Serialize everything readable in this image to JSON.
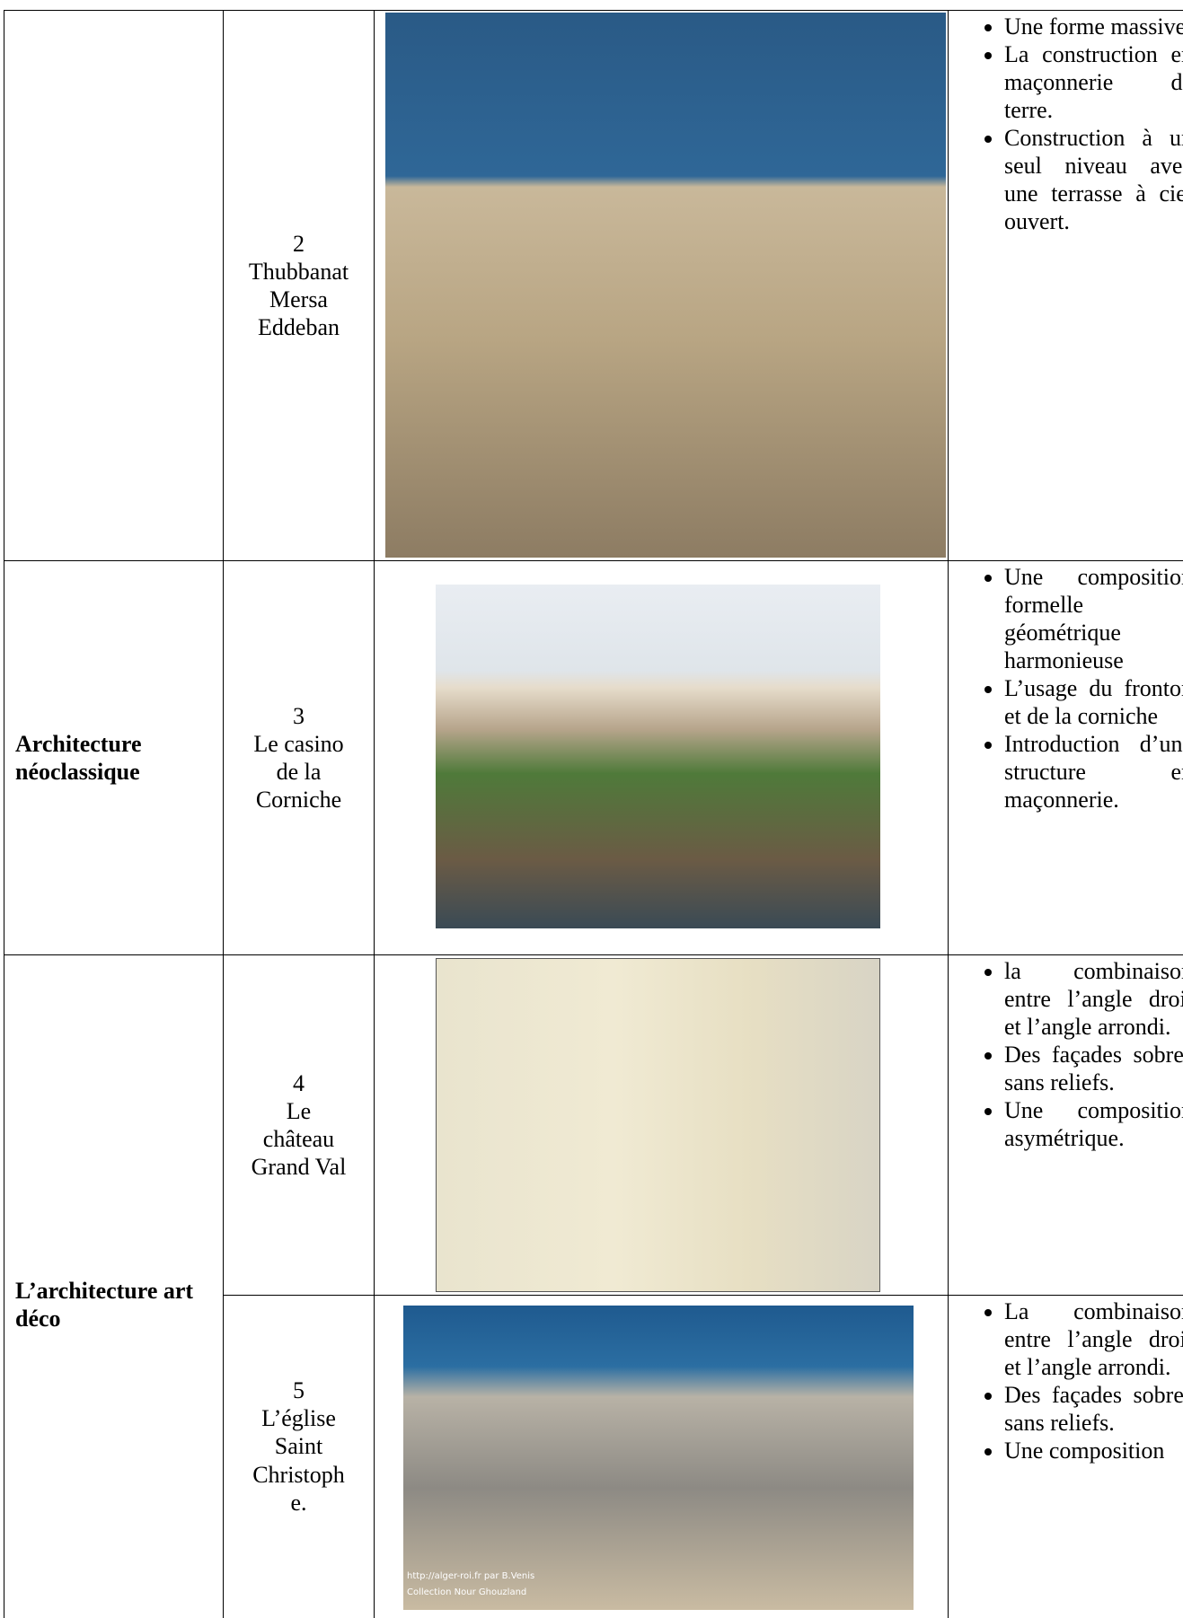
{
  "table": {
    "rows": [
      {
        "category": null,
        "number": "2",
        "name_lines": [
          "Thubbanat",
          "Mersa",
          "Eddeban"
        ],
        "bullets": [
          "Une forme massive.",
          "La construction en maçonnerie de terre.",
          "Construction à un seul niveau avec une terrasse à ciel ouvert."
        ]
      },
      {
        "category": "Architecture néoclassique",
        "number": "3",
        "name_lines": [
          "Le casino",
          "de la",
          "Corniche"
        ],
        "bullets": [
          "Une composition formelle géométrique harmonieuse",
          "L’usage du fronton et de la corniche",
          "Introduction d’une structure en maçonnerie."
        ]
      },
      {
        "category": "L’architecture art déco",
        "number": "4",
        "name_lines": [
          "Le",
          "château",
          "Grand Val"
        ],
        "bullets": [
          "la combinaison entre l’angle droit et l’angle arrondi.",
          "Des façades sobres sans reliefs.",
          "Une composition asymétrique."
        ]
      },
      {
        "category": null,
        "number": "5",
        "name_lines": [
          "L’église",
          "Saint",
          "Christoph",
          "e."
        ],
        "bullets": [
          "La combinaison entre l’angle droit et l’angle arrondi.",
          "Des façades sobres sans reliefs.",
          "Une composition"
        ],
        "photo_caption": [
          "http://alger-roi.fr   par B.Venis",
          "Collection Nour Ghouzland"
        ]
      }
    ]
  }
}
